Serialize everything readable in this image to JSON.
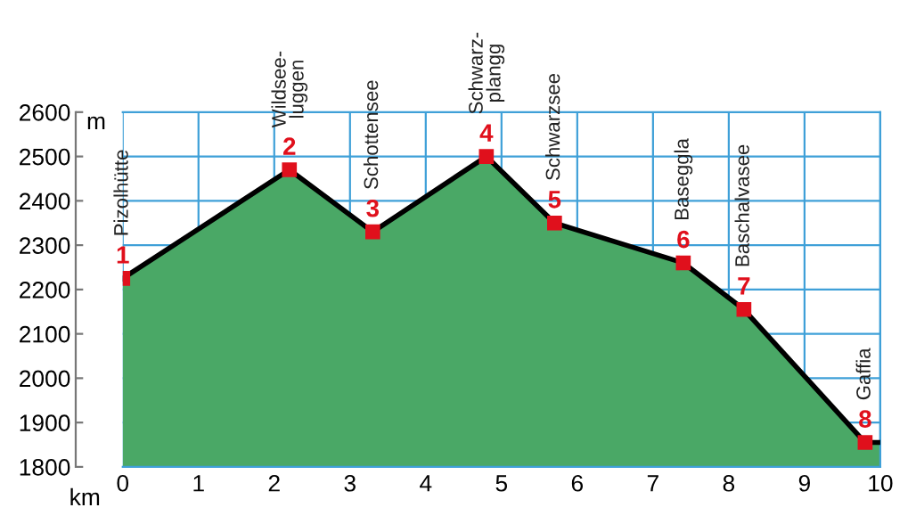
{
  "chart_data": {
    "type": "area",
    "xlabel": "km",
    "ylabel": "m",
    "series": [
      {
        "color": "#4aa866",
        "x": [
          0,
          2.2,
          3.3,
          4.8,
          5.7,
          7.4,
          8.2,
          9.8,
          10
        ],
        "values": [
          2225,
          2470,
          2330,
          2500,
          2350,
          2260,
          2155,
          1855,
          1855
        ]
      },
      {
        "type": "scatter",
        "color": "#e0101c",
        "marker": "square",
        "x": [
          0,
          2.2,
          3.3,
          4.8,
          5.7,
          7.4,
          8.2,
          9.8
        ],
        "values": [
          2225,
          2470,
          2330,
          2500,
          2350,
          2260,
          2155,
          1855
        ]
      }
    ],
    "annotations": [
      {
        "text": "1",
        "x": 0,
        "y": 2225
      },
      {
        "text": "Pizolhütte",
        "x": 0,
        "y": 2225
      },
      {
        "text": "2",
        "x": 2.2,
        "y": 2470
      },
      {
        "text": "Wildsee-\nluggen",
        "x": 2.2,
        "y": 2470
      },
      {
        "text": "3",
        "x": 3.3,
        "y": 2330
      },
      {
        "text": "Schottensee",
        "x": 3.3,
        "y": 2330
      },
      {
        "text": "4",
        "x": 4.8,
        "y": 2500
      },
      {
        "text": "Schwarz-\nplangg",
        "x": 4.8,
        "y": 2500
      },
      {
        "text": "5",
        "x": 5.7,
        "y": 2350
      },
      {
        "text": "Schwarzsee",
        "x": 5.7,
        "y": 2350
      },
      {
        "text": "6",
        "x": 7.4,
        "y": 2260
      },
      {
        "text": "Baseggla",
        "x": 7.4,
        "y": 2260
      },
      {
        "text": "7",
        "x": 8.2,
        "y": 2155
      },
      {
        "text": "Baschalvasee",
        "x": 8.2,
        "y": 2155
      },
      {
        "text": "8",
        "x": 9.8,
        "y": 1855
      },
      {
        "text": "Gaffia",
        "x": 9.8,
        "y": 1855
      }
    ],
    "xlim": [
      0,
      10
    ],
    "xticks": [
      0,
      1,
      2,
      3,
      4,
      5,
      6,
      7,
      8,
      9,
      10
    ],
    "ylim": [
      1800,
      2600
    ],
    "yticks": [
      1800,
      1900,
      2000,
      2100,
      2200,
      2300,
      2400,
      2500,
      2600
    ],
    "grid": true
  }
}
